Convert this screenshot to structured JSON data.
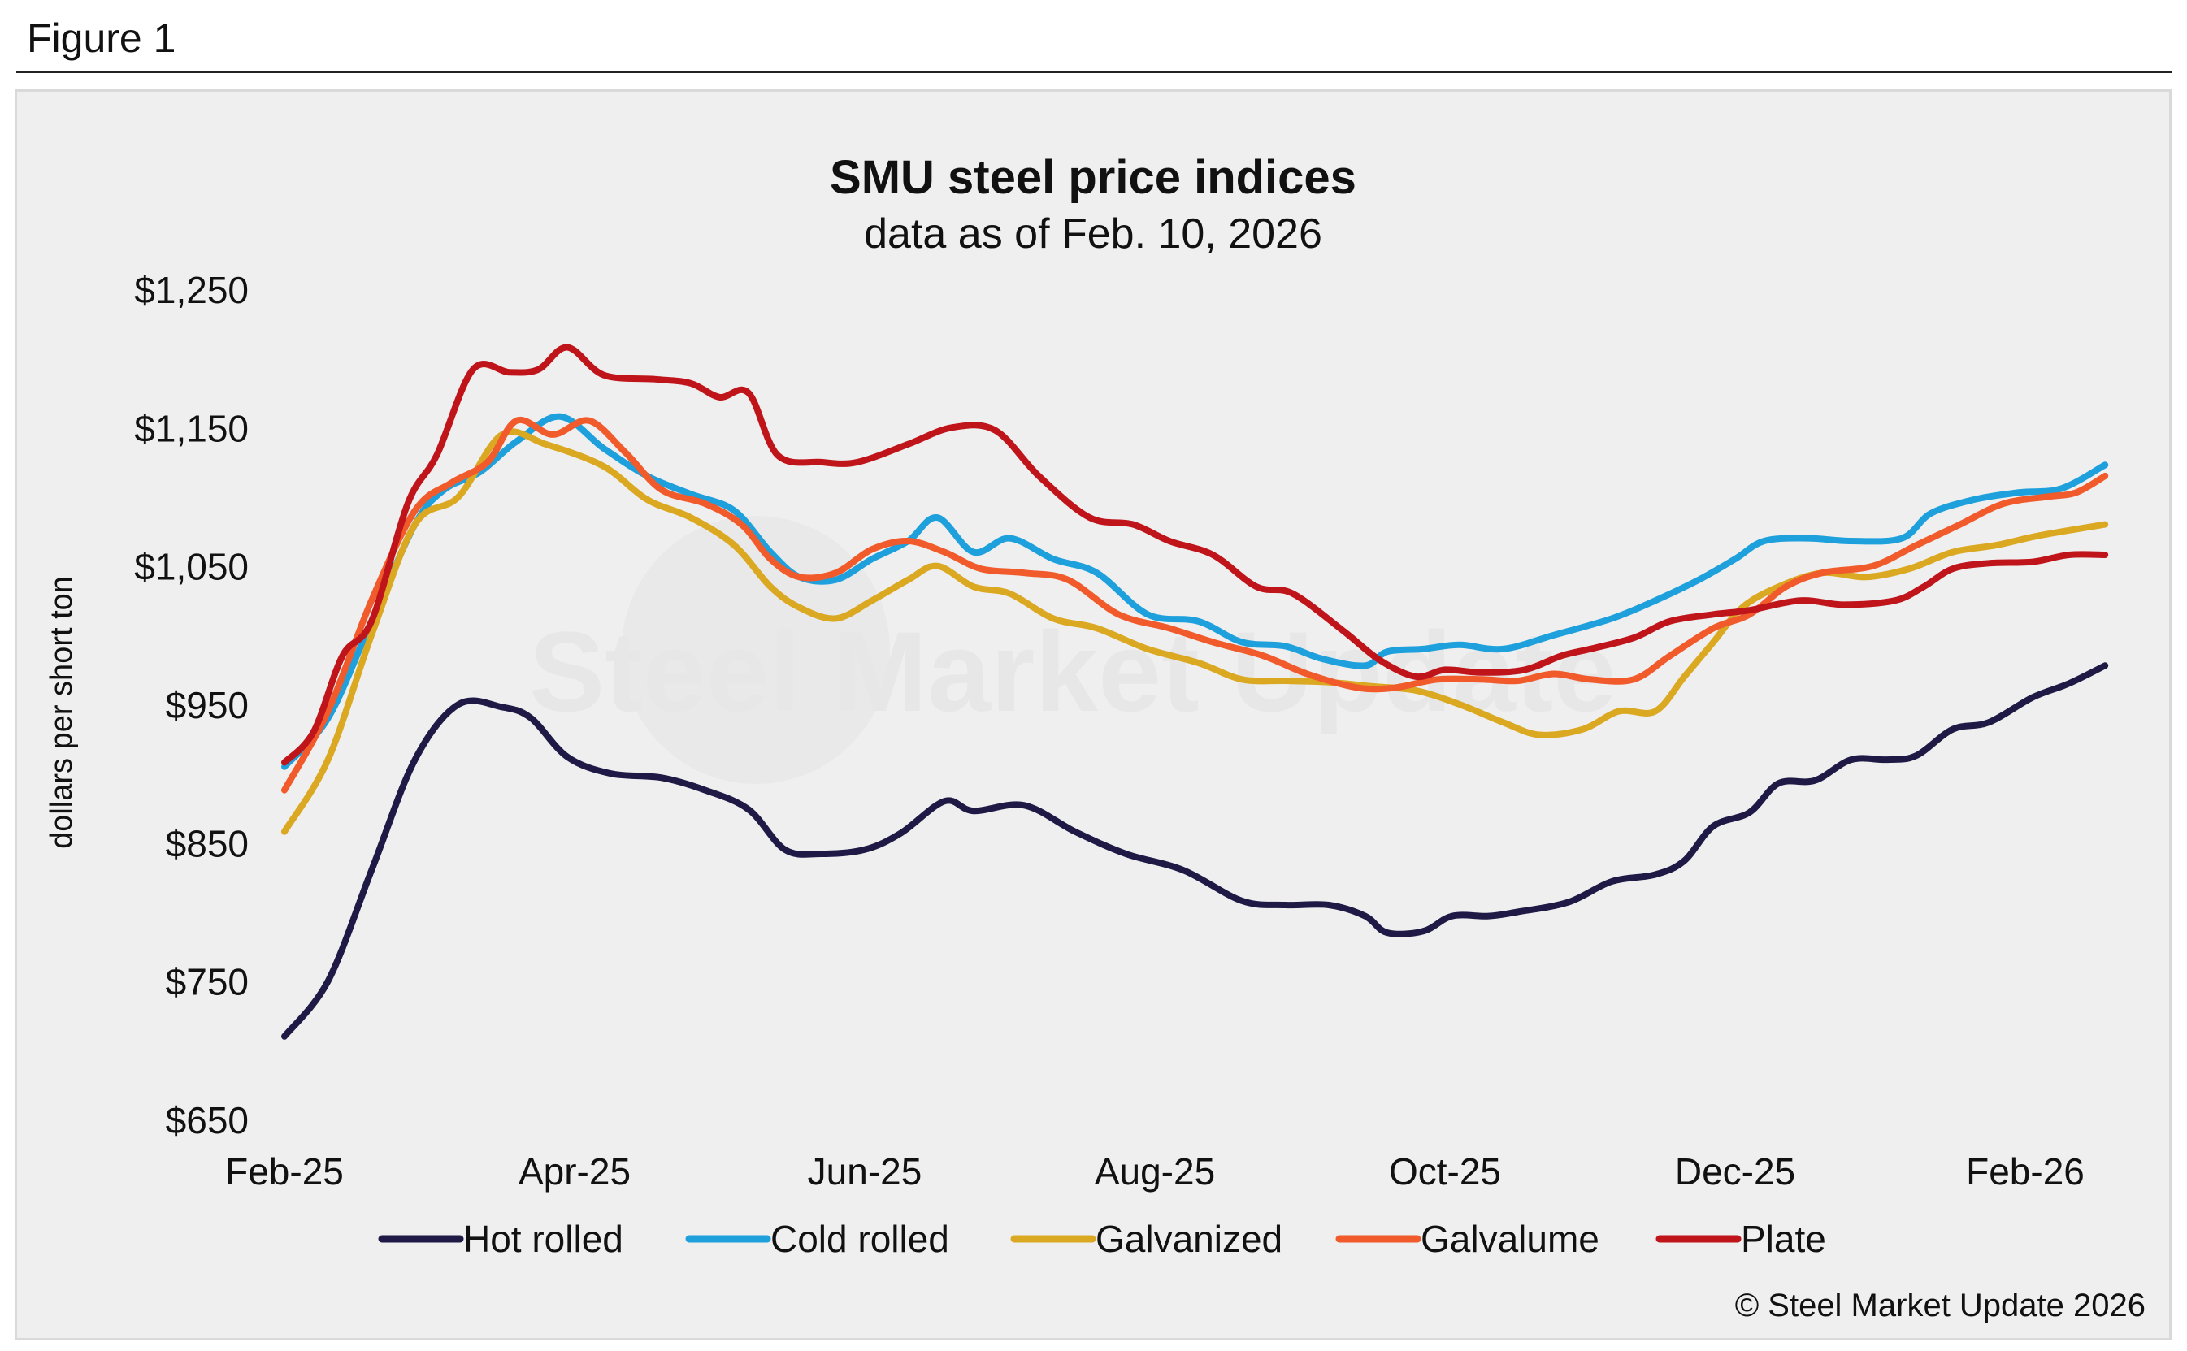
{
  "figure_label": "Figure 1",
  "copyright": "© Steel Market Update 2026",
  "watermark": "Steel Market Update",
  "colors": {
    "panel_bg": "#efefef",
    "hot_rolled": "#1e1a45",
    "cold_rolled": "#1ea0dc",
    "galvanized": "#dba822",
    "galvalume": "#f15a2b",
    "plate": "#c0141b"
  },
  "chart_data": {
    "type": "line",
    "title": "SMU steel price indices",
    "subtitle": "data as of Feb. 10, 2026",
    "ylabel": "dollars per short ton",
    "xlabel": "",
    "ylim": [
      650,
      1250
    ],
    "yticks": [
      "$1,250",
      "$1,150",
      "$1,050",
      "$950",
      "$850",
      "$750",
      "$650"
    ],
    "ytick_values": [
      1250,
      1150,
      1050,
      950,
      850,
      750,
      650
    ],
    "xtick_labels": [
      "Feb-25",
      "Apr-25",
      "Jun-25",
      "Aug-25",
      "Oct-25",
      "Dec-25",
      "Feb-26"
    ],
    "xtick_months": [
      0,
      2,
      4,
      6,
      8,
      10,
      12
    ],
    "xlim_months": [
      0,
      12.3
    ],
    "legend_position": "bottom",
    "grid": false,
    "series": [
      {
        "name": "Hot rolled",
        "color_key": "hot_rolled",
        "points": [
          [
            0,
            710
          ],
          [
            0.3,
            750
          ],
          [
            0.6,
            830
          ],
          [
            0.9,
            910
          ],
          [
            1.2,
            950
          ],
          [
            1.5,
            948
          ],
          [
            1.7,
            940
          ],
          [
            1.95,
            912
          ],
          [
            2.25,
            900
          ],
          [
            2.6,
            897
          ],
          [
            2.9,
            888
          ],
          [
            3.2,
            874
          ],
          [
            3.45,
            845
          ],
          [
            3.7,
            842
          ],
          [
            4.0,
            845
          ],
          [
            4.25,
            857
          ],
          [
            4.55,
            880
          ],
          [
            4.75,
            873
          ],
          [
            5.1,
            877
          ],
          [
            5.45,
            858
          ],
          [
            5.8,
            842
          ],
          [
            6.2,
            830
          ],
          [
            6.6,
            808
          ],
          [
            6.9,
            805
          ],
          [
            7.2,
            805
          ],
          [
            7.45,
            797
          ],
          [
            7.6,
            785
          ],
          [
            7.85,
            786
          ],
          [
            8.05,
            797
          ],
          [
            8.3,
            797
          ],
          [
            8.5,
            800
          ],
          [
            8.85,
            807
          ],
          [
            9.15,
            822
          ],
          [
            9.45,
            827
          ],
          [
            9.65,
            837
          ],
          [
            9.85,
            862
          ],
          [
            10.1,
            872
          ],
          [
            10.3,
            893
          ],
          [
            10.55,
            895
          ],
          [
            10.8,
            910
          ],
          [
            11.05,
            910
          ],
          [
            11.25,
            913
          ],
          [
            11.5,
            932
          ],
          [
            11.75,
            937
          ],
          [
            12.05,
            955
          ],
          [
            12.3,
            965
          ],
          [
            12.55,
            978
          ]
        ]
      },
      {
        "name": "Cold rolled",
        "color_key": "cold_rolled",
        "points": [
          [
            0,
            905
          ],
          [
            0.3,
            940
          ],
          [
            0.6,
            1010
          ],
          [
            0.9,
            1080
          ],
          [
            1.1,
            1105
          ],
          [
            1.35,
            1118
          ],
          [
            1.6,
            1140
          ],
          [
            1.9,
            1158
          ],
          [
            2.2,
            1135
          ],
          [
            2.5,
            1115
          ],
          [
            2.8,
            1102
          ],
          [
            3.1,
            1090
          ],
          [
            3.35,
            1060
          ],
          [
            3.55,
            1042
          ],
          [
            3.8,
            1040
          ],
          [
            4.05,
            1055
          ],
          [
            4.3,
            1068
          ],
          [
            4.5,
            1085
          ],
          [
            4.75,
            1060
          ],
          [
            5.0,
            1070
          ],
          [
            5.3,
            1055
          ],
          [
            5.6,
            1045
          ],
          [
            5.95,
            1015
          ],
          [
            6.3,
            1010
          ],
          [
            6.6,
            995
          ],
          [
            6.9,
            992
          ],
          [
            7.15,
            983
          ],
          [
            7.45,
            978
          ],
          [
            7.6,
            988
          ],
          [
            7.85,
            990
          ],
          [
            8.1,
            993
          ],
          [
            8.4,
            990
          ],
          [
            8.75,
            1000
          ],
          [
            9.15,
            1012
          ],
          [
            9.45,
            1025
          ],
          [
            9.75,
            1040
          ],
          [
            10.0,
            1055
          ],
          [
            10.2,
            1068
          ],
          [
            10.5,
            1070
          ],
          [
            10.8,
            1068
          ],
          [
            11.15,
            1070
          ],
          [
            11.35,
            1088
          ],
          [
            11.65,
            1098
          ],
          [
            11.95,
            1103
          ],
          [
            12.25,
            1106
          ],
          [
            12.55,
            1123
          ]
        ]
      },
      {
        "name": "Galvanized",
        "color_key": "galvanized",
        "points": [
          [
            0,
            858
          ],
          [
            0.3,
            910
          ],
          [
            0.6,
            1000
          ],
          [
            0.9,
            1080
          ],
          [
            1.2,
            1100
          ],
          [
            1.5,
            1145
          ],
          [
            1.8,
            1138
          ],
          [
            2.2,
            1122
          ],
          [
            2.5,
            1098
          ],
          [
            2.8,
            1085
          ],
          [
            3.1,
            1065
          ],
          [
            3.35,
            1035
          ],
          [
            3.55,
            1020
          ],
          [
            3.8,
            1012
          ],
          [
            4.05,
            1025
          ],
          [
            4.3,
            1040
          ],
          [
            4.5,
            1050
          ],
          [
            4.75,
            1035
          ],
          [
            5.0,
            1030
          ],
          [
            5.3,
            1012
          ],
          [
            5.6,
            1005
          ],
          [
            5.95,
            990
          ],
          [
            6.3,
            980
          ],
          [
            6.6,
            968
          ],
          [
            6.9,
            967
          ],
          [
            7.2,
            966
          ],
          [
            7.5,
            963
          ],
          [
            7.8,
            960
          ],
          [
            8.1,
            950
          ],
          [
            8.4,
            937
          ],
          [
            8.65,
            928
          ],
          [
            8.95,
            932
          ],
          [
            9.2,
            945
          ],
          [
            9.45,
            945
          ],
          [
            9.65,
            970
          ],
          [
            9.85,
            995
          ],
          [
            10.05,
            1020
          ],
          [
            10.3,
            1035
          ],
          [
            10.6,
            1045
          ],
          [
            10.9,
            1042
          ],
          [
            11.2,
            1048
          ],
          [
            11.5,
            1060
          ],
          [
            11.8,
            1065
          ],
          [
            12.1,
            1072
          ],
          [
            12.55,
            1080
          ]
        ]
      },
      {
        "name": "Galvalume",
        "color_key": "galvalume",
        "points": [
          [
            0,
            888
          ],
          [
            0.3,
            945
          ],
          [
            0.6,
            1025
          ],
          [
            0.9,
            1090
          ],
          [
            1.15,
            1110
          ],
          [
            1.4,
            1125
          ],
          [
            1.6,
            1155
          ],
          [
            1.85,
            1145
          ],
          [
            2.1,
            1155
          ],
          [
            2.35,
            1132
          ],
          [
            2.6,
            1105
          ],
          [
            2.9,
            1095
          ],
          [
            3.15,
            1080
          ],
          [
            3.35,
            1055
          ],
          [
            3.55,
            1042
          ],
          [
            3.8,
            1045
          ],
          [
            4.05,
            1062
          ],
          [
            4.3,
            1068
          ],
          [
            4.55,
            1060
          ],
          [
            4.8,
            1048
          ],
          [
            5.1,
            1045
          ],
          [
            5.4,
            1040
          ],
          [
            5.75,
            1015
          ],
          [
            6.1,
            1005
          ],
          [
            6.4,
            995
          ],
          [
            6.75,
            985
          ],
          [
            7.05,
            972
          ],
          [
            7.4,
            962
          ],
          [
            7.65,
            962
          ],
          [
            7.95,
            968
          ],
          [
            8.25,
            968
          ],
          [
            8.5,
            967
          ],
          [
            8.75,
            972
          ],
          [
            9.0,
            968
          ],
          [
            9.3,
            968
          ],
          [
            9.55,
            985
          ],
          [
            9.85,
            1005
          ],
          [
            10.1,
            1015
          ],
          [
            10.35,
            1035
          ],
          [
            10.6,
            1045
          ],
          [
            10.95,
            1050
          ],
          [
            11.25,
            1065
          ],
          [
            11.55,
            1080
          ],
          [
            11.85,
            1095
          ],
          [
            12.15,
            1100
          ],
          [
            12.35,
            1103
          ],
          [
            12.55,
            1115
          ]
        ]
      },
      {
        "name": "Plate",
        "color_key": "plate",
        "points": [
          [
            0,
            908
          ],
          [
            0.2,
            930
          ],
          [
            0.4,
            985
          ],
          [
            0.6,
            1010
          ],
          [
            0.85,
            1095
          ],
          [
            1.05,
            1130
          ],
          [
            1.3,
            1192
          ],
          [
            1.55,
            1190
          ],
          [
            1.75,
            1192
          ],
          [
            1.95,
            1208
          ],
          [
            2.2,
            1188
          ],
          [
            2.55,
            1185
          ],
          [
            2.8,
            1182
          ],
          [
            3.0,
            1172
          ],
          [
            3.2,
            1175
          ],
          [
            3.4,
            1130
          ],
          [
            3.7,
            1125
          ],
          [
            3.95,
            1125
          ],
          [
            4.3,
            1138
          ],
          [
            4.6,
            1150
          ],
          [
            4.9,
            1148
          ],
          [
            5.2,
            1115
          ],
          [
            5.55,
            1085
          ],
          [
            5.85,
            1080
          ],
          [
            6.1,
            1068
          ],
          [
            6.4,
            1058
          ],
          [
            6.7,
            1035
          ],
          [
            6.95,
            1030
          ],
          [
            7.3,
            1003
          ],
          [
            7.55,
            982
          ],
          [
            7.8,
            970
          ],
          [
            8.0,
            975
          ],
          [
            8.25,
            973
          ],
          [
            8.55,
            975
          ],
          [
            8.8,
            985
          ],
          [
            9.0,
            990
          ],
          [
            9.3,
            998
          ],
          [
            9.55,
            1010
          ],
          [
            9.85,
            1015
          ],
          [
            10.1,
            1018
          ],
          [
            10.45,
            1025
          ],
          [
            10.75,
            1022
          ],
          [
            11.1,
            1025
          ],
          [
            11.3,
            1035
          ],
          [
            11.5,
            1048
          ],
          [
            11.75,
            1052
          ],
          [
            12.05,
            1053
          ],
          [
            12.3,
            1058
          ],
          [
            12.55,
            1058
          ]
        ]
      }
    ]
  }
}
